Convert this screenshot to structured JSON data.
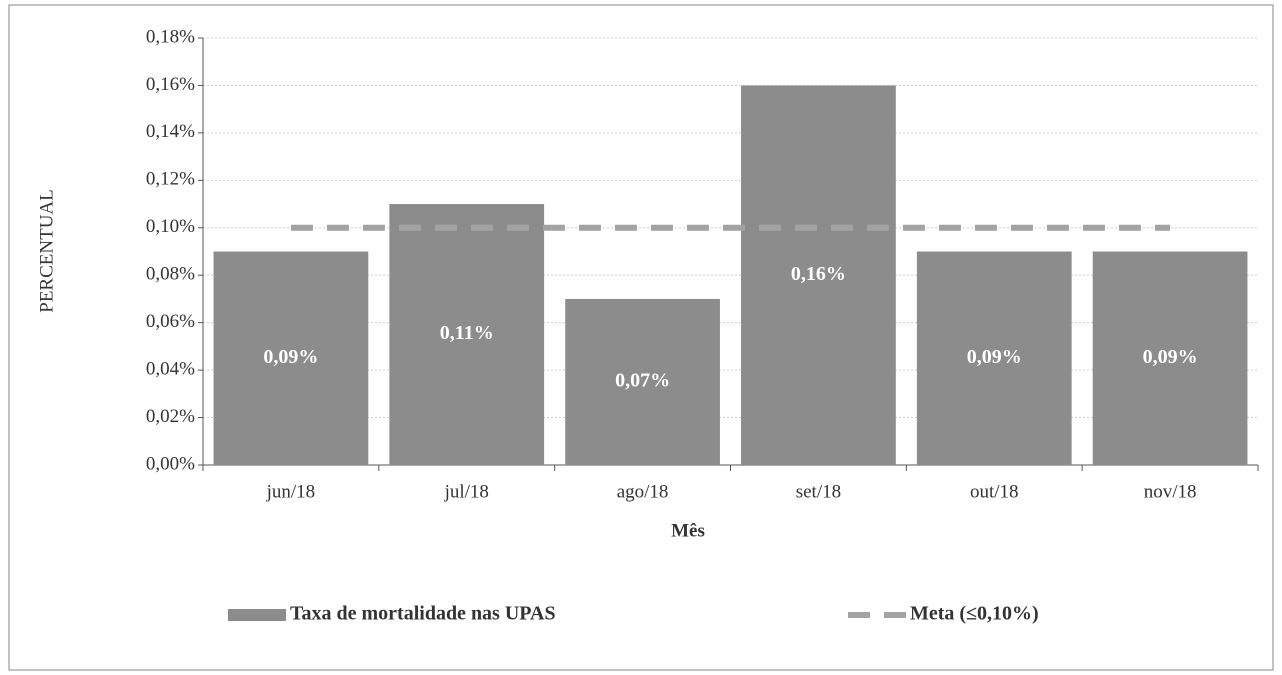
{
  "chart_data": {
    "type": "bar",
    "x_label": "Mês",
    "y_label": "PERCENTUAL",
    "categories": [
      "jun/18",
      "jul/18",
      "ago/18",
      "set/18",
      "out/18",
      "nov/18"
    ],
    "series": [
      {
        "name": "Taxa de mortalidade nas UPAS",
        "type": "bar",
        "color": "#8c8c8c",
        "values": [
          0.09,
          0.11,
          0.07,
          0.16,
          0.09,
          0.09
        ],
        "value_labels": [
          "0,09%",
          "0,11%",
          "0,07%",
          "0,16%",
          "0,09%",
          "0,09%"
        ]
      },
      {
        "name": "Meta (≤0,10%)",
        "type": "line",
        "dashed": true,
        "color": "#a3a3a3",
        "values": [
          0.1,
          0.1,
          0.1,
          0.1,
          0.1,
          0.1
        ]
      }
    ],
    "ylim": [
      0,
      0.18
    ],
    "yticks": [
      {
        "value": 0,
        "label": "0,00%"
      },
      {
        "value": 0.02,
        "label": "0,02%"
      },
      {
        "value": 0.04,
        "label": "0,04%"
      },
      {
        "value": 0.06,
        "label": "0,06%"
      },
      {
        "value": 0.08,
        "label": "0,08%"
      },
      {
        "value": 0.1,
        "label": "0,10%"
      },
      {
        "value": 0.12,
        "label": "0,12%"
      },
      {
        "value": 0.14,
        "label": "0,14%"
      },
      {
        "value": 0.16,
        "label": "0,16%"
      },
      {
        "value": 0.18,
        "label": "0,18%"
      }
    ],
    "grid": true,
    "legend": "bottom"
  }
}
